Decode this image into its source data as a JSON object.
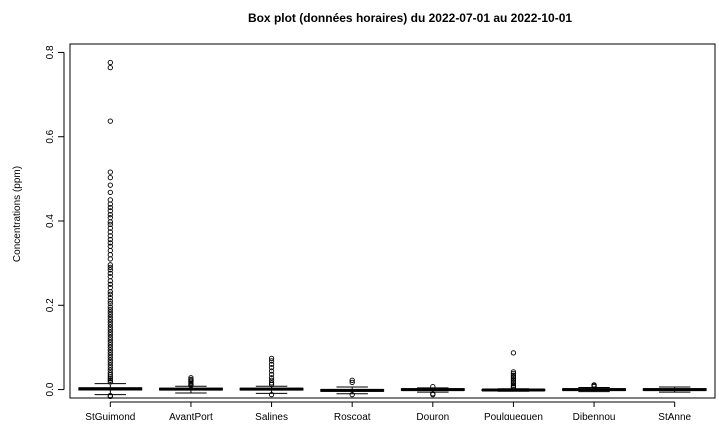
{
  "chart_data": {
    "type": "boxplot",
    "title": "Box plot (données horaires) du 2022-07-01 au 2022-10-01",
    "xlabel": "",
    "ylabel": "Concentrations (ppm)",
    "ylim": [
      -0.02,
      0.82
    ],
    "yticks": [
      0.0,
      0.2,
      0.4,
      0.6,
      0.8
    ],
    "ytick_labels": [
      "0.0",
      "0.2",
      "0.4",
      "0.6",
      "0.8"
    ],
    "grid": false,
    "categories": [
      "StGuimond",
      "AvantPort",
      "Salines",
      "Roscoat",
      "Douron",
      "Poulgueguen",
      "Dibennou",
      "StAnne"
    ],
    "boxes": [
      {
        "category": "StGuimond",
        "whisker_low": -0.012,
        "q1": -0.001,
        "median": 0.002,
        "q3": 0.004,
        "whisker_high": 0.014,
        "outliers": [
          0.776,
          0.764,
          0.637,
          0.516,
          0.503,
          0.485,
          0.468,
          0.45,
          0.44,
          0.432,
          0.424,
          0.415,
          0.408,
          0.398,
          0.392,
          0.383,
          0.374,
          0.365,
          0.356,
          0.348,
          0.34,
          0.33,
          0.32,
          0.31,
          0.296,
          0.29,
          0.284,
          0.276,
          0.268,
          0.258,
          0.25,
          0.242,
          0.232,
          0.226,
          0.218,
          0.21,
          0.204,
          0.196,
          0.19,
          0.184,
          0.178,
          0.172,
          0.166,
          0.16,
          0.154,
          0.148,
          0.142,
          0.136,
          0.13,
          0.124,
          0.118,
          0.112,
          0.106,
          0.1,
          0.094,
          0.088,
          0.082,
          0.076,
          0.07,
          0.064,
          0.058,
          0.052,
          0.046,
          0.04,
          0.035,
          0.03,
          0.026,
          0.022,
          0.018,
          -0.014,
          -0.016
        ]
      },
      {
        "category": "AvantPort",
        "whisker_low": -0.008,
        "q1": -0.001,
        "median": 0.001,
        "q3": 0.003,
        "whisker_high": 0.008,
        "outliers": [
          0.028,
          0.024,
          0.021,
          0.018,
          0.015,
          0.012,
          0.01
        ]
      },
      {
        "category": "Salines",
        "whisker_low": -0.009,
        "q1": -0.001,
        "median": 0.001,
        "q3": 0.003,
        "whisker_high": 0.008,
        "outliers": [
          0.074,
          0.068,
          0.06,
          0.052,
          0.044,
          0.036,
          0.028,
          0.022,
          0.016,
          0.012,
          -0.012
        ]
      },
      {
        "category": "Roscoat",
        "whisker_low": -0.01,
        "q1": -0.004,
        "median": -0.002,
        "q3": 0.0,
        "whisker_high": 0.006,
        "outliers": [
          0.022,
          0.017,
          -0.012
        ]
      },
      {
        "category": "Douron",
        "whisker_low": -0.006,
        "q1": -0.002,
        "median": 0.0,
        "q3": 0.002,
        "whisker_high": 0.004,
        "outliers": [
          0.007,
          -0.01,
          -0.012
        ]
      },
      {
        "category": "Poulgueguen",
        "whisker_low": -0.004,
        "q1": -0.002,
        "median": -0.001,
        "q3": 0.0,
        "whisker_high": 0.002,
        "outliers": [
          0.087,
          0.042,
          0.038,
          0.034,
          0.03,
          0.026,
          0.022,
          0.018,
          0.014,
          0.01,
          0.007,
          0.005
        ]
      },
      {
        "category": "Dibennou",
        "whisker_low": -0.005,
        "q1": -0.002,
        "median": 0.0,
        "q3": 0.002,
        "whisker_high": 0.005,
        "outliers": [
          0.011,
          0.009,
          0.007
        ]
      },
      {
        "category": "StAnne",
        "whisker_low": -0.006,
        "q1": -0.002,
        "median": 0.0,
        "q3": 0.002,
        "whisker_high": 0.006,
        "outliers": []
      }
    ]
  }
}
